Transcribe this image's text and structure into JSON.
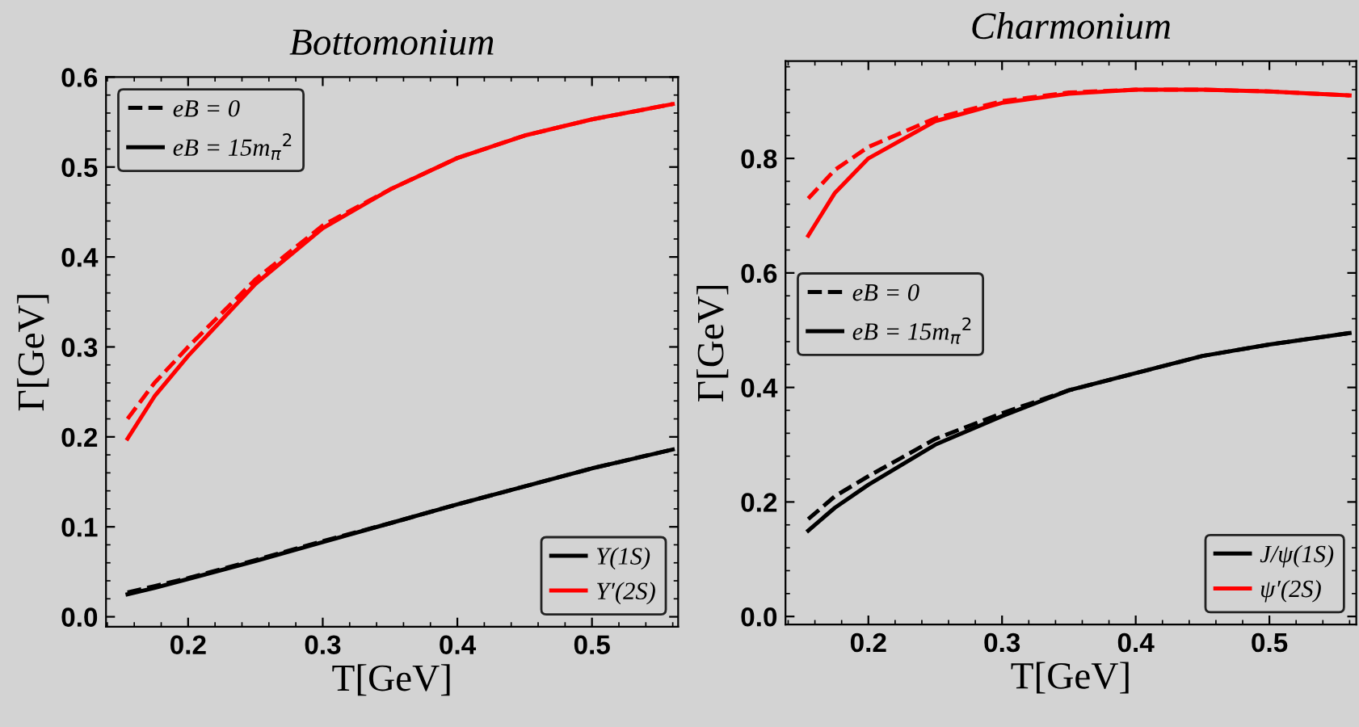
{
  "chart_data": [
    {
      "type": "line",
      "title": "Bottomonium",
      "xlabel": "T[GeV]",
      "ylabel": "Γ[GeV]",
      "x": [
        0.155,
        0.175,
        0.2,
        0.25,
        0.3,
        0.35,
        0.4,
        0.45,
        0.5,
        0.56
      ],
      "xlim": [
        0.139,
        0.564
      ],
      "xticks": [
        0.2,
        0.3,
        0.4,
        0.5
      ],
      "ylim": [
        -0.011,
        0.6
      ],
      "yticks": [
        {
          "value": 0,
          "label": "0.0"
        },
        0.1,
        0.2,
        0.3,
        0.4,
        0.5,
        0.6
      ],
      "series": [
        {
          "color": "#000000",
          "line_style": "dashed",
          "values": [
            0.027,
            0.034,
            0.043,
            0.063,
            0.084,
            0.104,
            0.125,
            0.145,
            0.165,
            0.186
          ]
        },
        {
          "name": "Υ(1S)",
          "color": "#000000",
          "line_style": "solid",
          "values": [
            0.025,
            0.032,
            0.042,
            0.062,
            0.083,
            0.104,
            0.125,
            0.145,
            0.165,
            0.186
          ]
        },
        {
          "color": "#ff0000",
          "line_style": "dashed",
          "values": [
            0.22,
            0.26,
            0.3,
            0.375,
            0.435,
            0.475,
            0.51,
            0.535,
            0.553,
            0.57
          ]
        },
        {
          "name": "Υ′(2S)",
          "color": "#ff0000",
          "line_style": "solid",
          "values": [
            0.198,
            0.245,
            0.29,
            0.37,
            0.432,
            0.475,
            0.51,
            0.535,
            0.553,
            0.57
          ]
        }
      ],
      "legend": "bottom right",
      "grid": false,
      "annotations": [
        "eB = 0",
        "eB = 15m$_{π}$$^{2}$"
      ]
    },
    {
      "type": "line",
      "title": "Charmonium",
      "xlabel": "T[GeV]",
      "ylabel": "Γ[GeV]",
      "x": [
        0.155,
        0.175,
        0.2,
        0.25,
        0.3,
        0.35,
        0.4,
        0.45,
        0.5,
        0.56
      ],
      "xlim": [
        0.138,
        0.565
      ],
      "xticks": [
        0.2,
        0.3,
        0.4,
        0.5
      ],
      "ylim": [
        -0.014,
        0.97
      ],
      "yticks": [
        {
          "value": 0,
          "label": "0.0"
        },
        0.2,
        0.4,
        0.6,
        0.8
      ],
      "series": [
        {
          "color": "#000000",
          "line_style": "dashed",
          "values": [
            0.17,
            0.21,
            0.245,
            0.31,
            0.355,
            0.395,
            0.425,
            0.455,
            0.475,
            0.495
          ]
        },
        {
          "name": "J/ψ(1S)",
          "color": "#000000",
          "line_style": "solid",
          "values": [
            0.15,
            0.19,
            0.23,
            0.3,
            0.35,
            0.395,
            0.425,
            0.455,
            0.475,
            0.495
          ]
        },
        {
          "color": "#ff0000",
          "line_style": "dashed",
          "values": [
            0.73,
            0.78,
            0.82,
            0.87,
            0.9,
            0.915,
            0.92,
            0.92,
            0.917,
            0.91
          ]
        },
        {
          "name": "ψ′(2S)",
          "color": "#ff0000",
          "line_style": "solid",
          "values": [
            0.665,
            0.74,
            0.8,
            0.865,
            0.897,
            0.913,
            0.92,
            0.92,
            0.917,
            0.91
          ]
        }
      ],
      "legend": "bottom right",
      "grid": false,
      "annotations": [
        "eB = 0",
        "eB = 15m$_{π}$$^{2}$"
      ]
    }
  ]
}
